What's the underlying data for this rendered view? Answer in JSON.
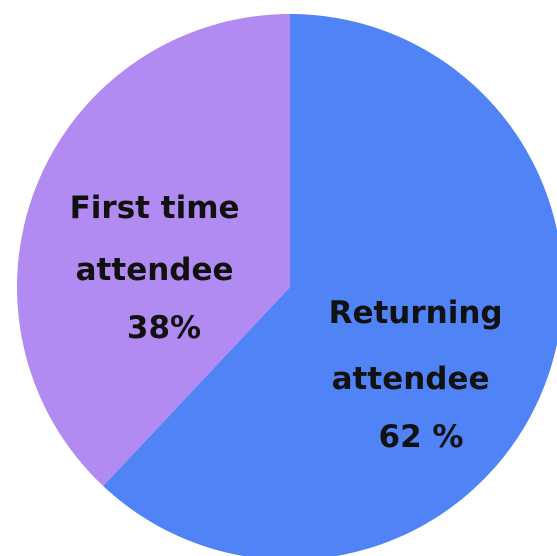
{
  "chart_data": {
    "type": "pie",
    "slices": [
      {
        "label_lines": [
          "Returning",
          "attendee",
          "62 %"
        ],
        "value": 62,
        "color": "#4f83f6"
      },
      {
        "label_lines": [
          "First time",
          "attendee",
          "38%"
        ],
        "value": 38,
        "color": "#b28bf2"
      }
    ]
  }
}
